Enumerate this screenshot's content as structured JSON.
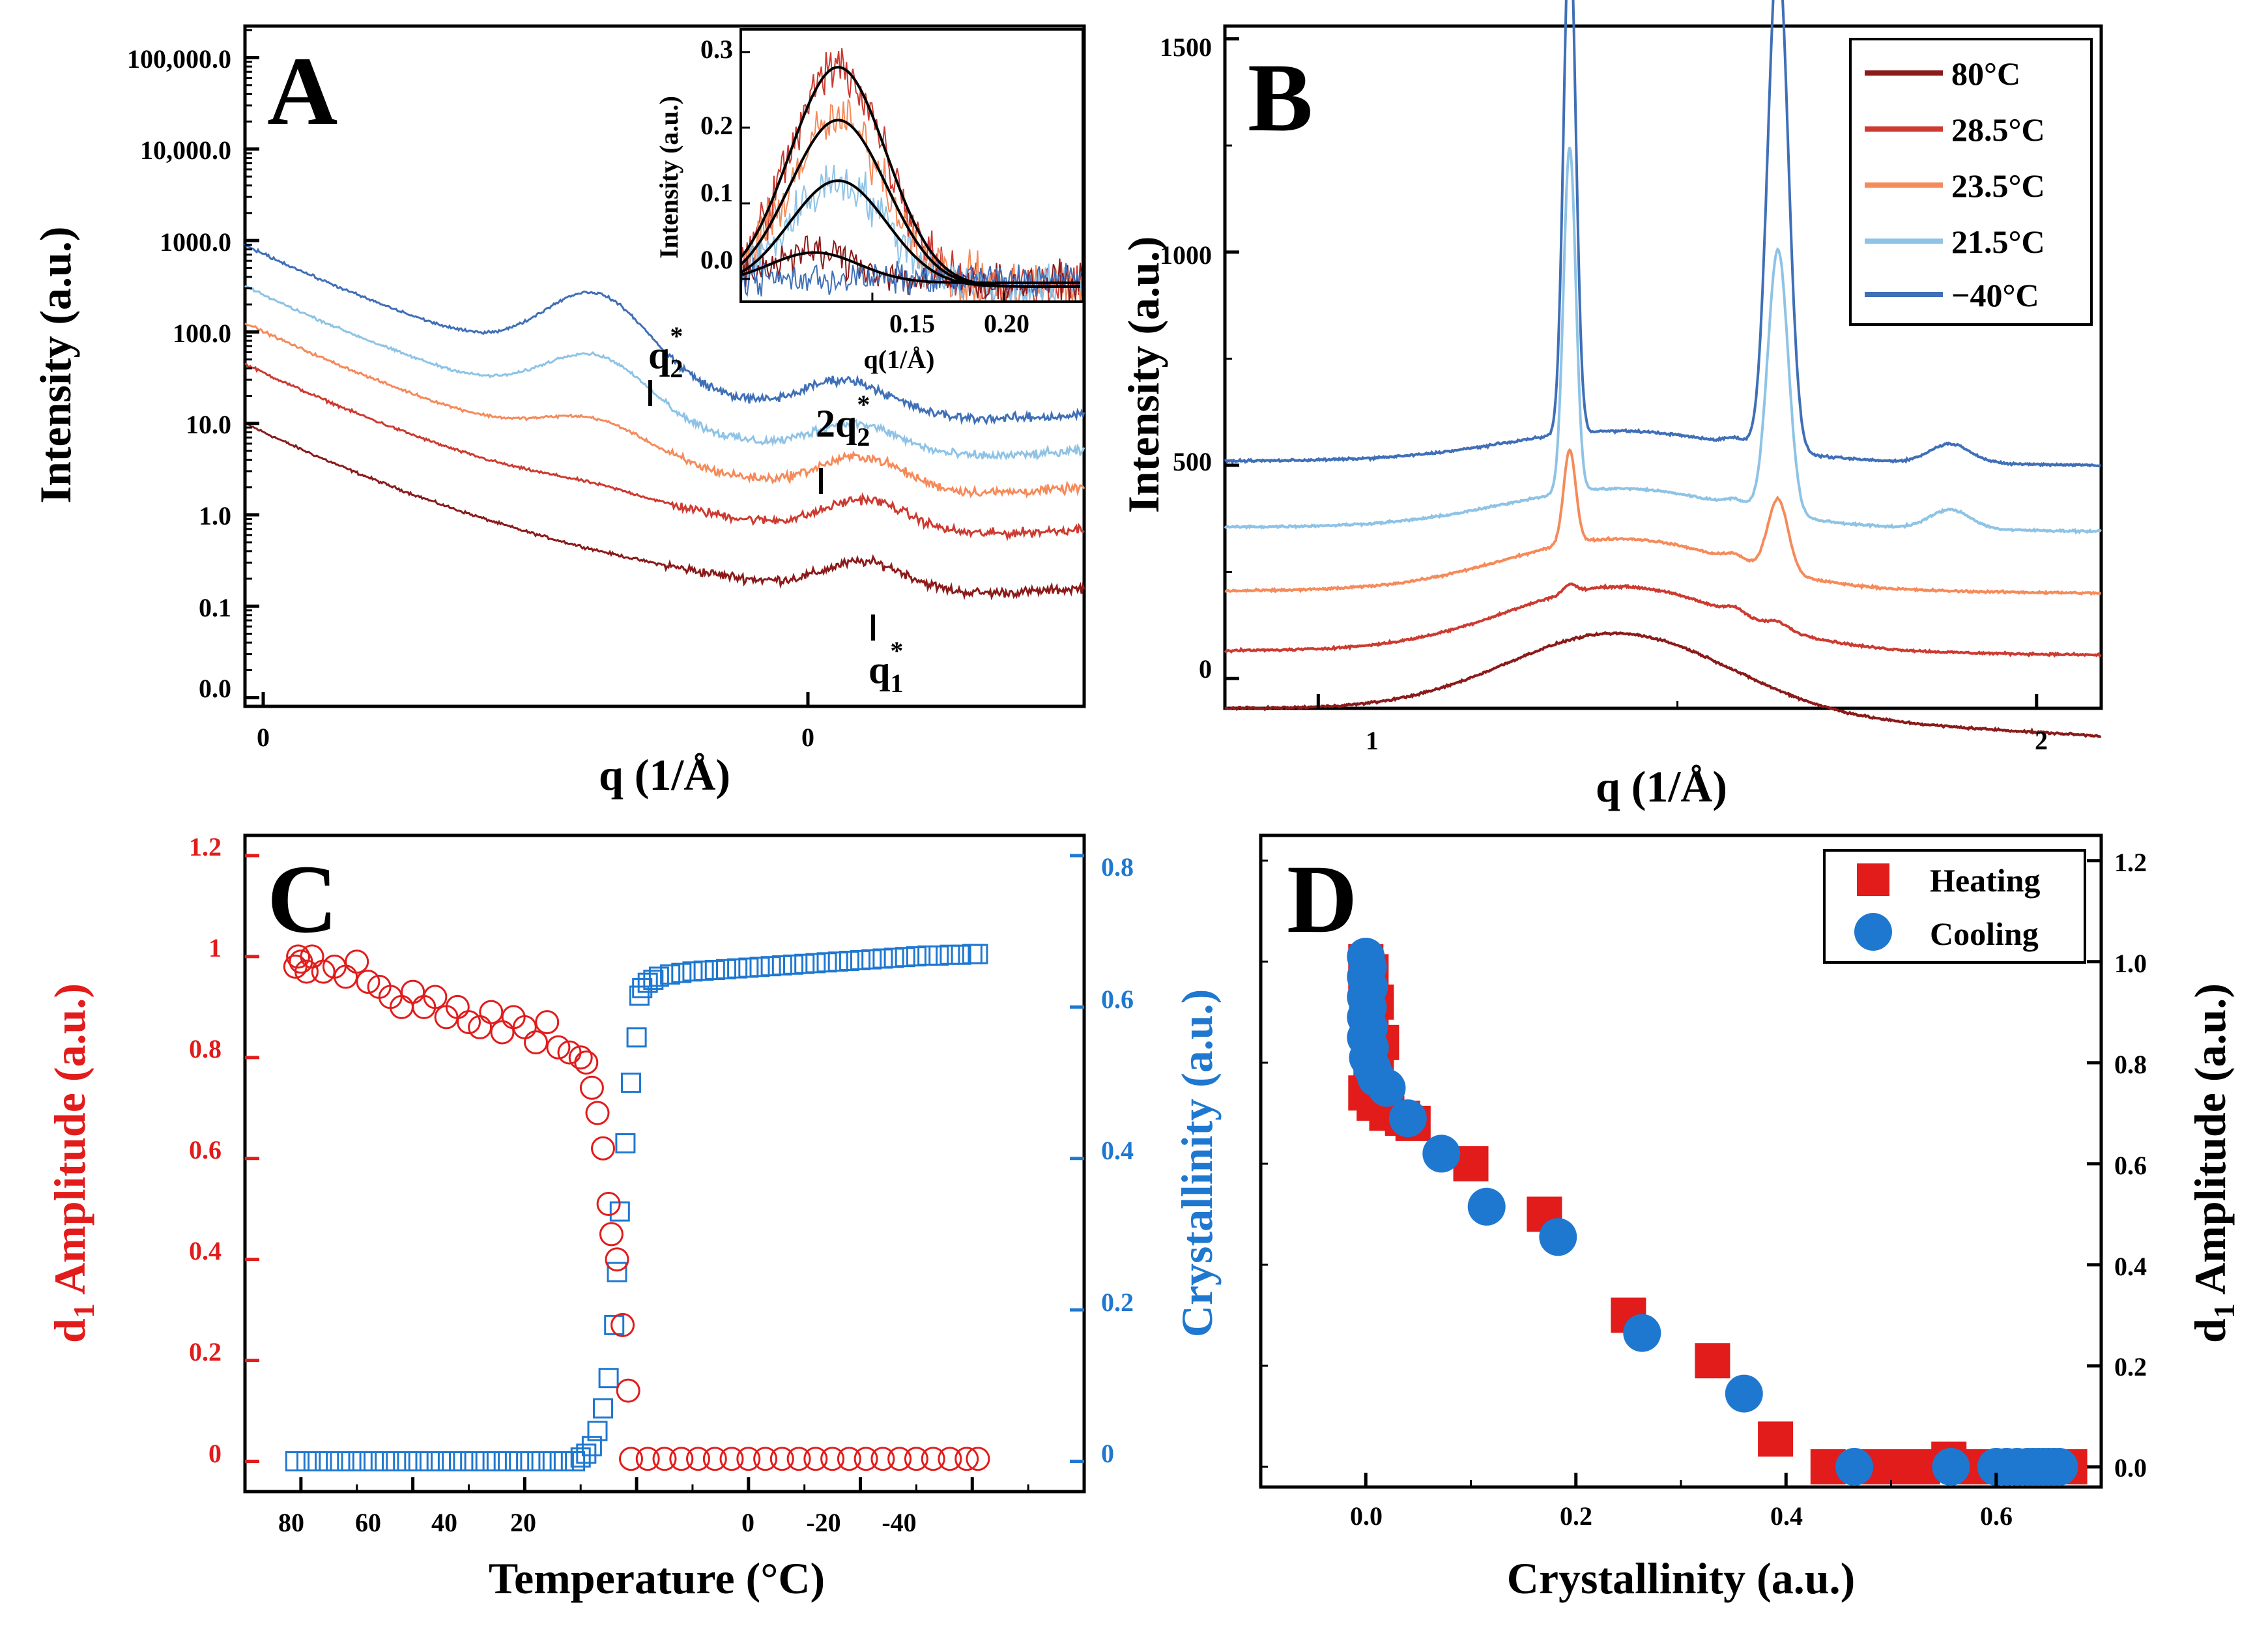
{
  "colors": {
    "c80": "#8b1a1a",
    "c285": "#cc3a30",
    "c235": "#f58a5a",
    "c215": "#8ec3e6",
    "cm40": "#3f6fb7",
    "red": "#e21b1b",
    "blue": "#1f78d0"
  },
  "chart_data": [
    {
      "panel": "A",
      "type": "line",
      "xlabel": "q (1/Å)",
      "ylabel": "Intensity (a.u.)",
      "x_tick_labels": [
        "0",
        "0"
      ],
      "y_tick_labels": [
        "100,000.0",
        "10,000.0",
        "1000.0",
        "100.0",
        "10.0",
        "1.0",
        "0.1",
        "0.0"
      ],
      "annotations": {
        "q2": "q",
        "q2_sub": "2",
        "q2_sup": "*",
        "two_q2": "2q",
        "two_q2_sub": "2",
        "two_q2_sup": "*",
        "q1": "q",
        "q1_sub": "1",
        "q1_sup": "*"
      },
      "series_names": [
        "80°C",
        "28.5°C",
        "23.5°C",
        "21.5°C",
        "−40°C"
      ],
      "inset": {
        "type": "line",
        "xlabel": "q(1/Å)",
        "ylabel": "Intensity (a.u.)",
        "xlim": [
          0.1,
          0.23
        ],
        "ylim": [
          -0.03,
          0.33
        ],
        "x_ticks": [
          0.15,
          0.2
        ],
        "x_tick_labels": [
          "0.15",
          "0.20"
        ],
        "y_ticks": [
          0.0,
          0.1,
          0.2,
          0.3
        ],
        "y_tick_labels": [
          "0.0",
          "0.1",
          "0.2",
          "0.3"
        ],
        "gaussian_fits": [
          {
            "name": "28.5°C",
            "center": 0.137,
            "amplitude": 0.29,
            "width": 0.026,
            "base": -0.01
          },
          {
            "name": "23.5°C",
            "center": 0.137,
            "amplitude": 0.22,
            "width": 0.026,
            "base": -0.01
          },
          {
            "name": "21.5°C",
            "center": 0.137,
            "amplitude": 0.14,
            "width": 0.026,
            "base": -0.01
          },
          {
            "name": "80°C",
            "center": 0.128,
            "amplitude": 0.04,
            "width": 0.024,
            "base": -0.005
          }
        ]
      }
    },
    {
      "panel": "B",
      "type": "line",
      "xlabel": "q (1/Å)",
      "ylabel": "Intensity (a.u.)",
      "xlim": [
        0.87,
        2.09
      ],
      "ylim": [
        -70,
        1530
      ],
      "x_ticks": [
        1,
        2
      ],
      "x_tick_labels": [
        "1",
        "2"
      ],
      "y_ticks": [
        0,
        500,
        1000,
        1500
      ],
      "y_tick_labels": [
        "0",
        "500",
        "1000",
        "1500"
      ],
      "legend": [
        "80°C",
        "28.5°C",
        "23.5°C",
        "21.5°C",
        "−40°C"
      ],
      "peaks_q": [
        1.35,
        1.64
      ],
      "series": [
        {
          "name": "80°C",
          "baseline_left": -70,
          "baseline_right": -75,
          "hump_height": 190,
          "peak1": 0,
          "peak2": 0
        },
        {
          "name": "28.5°C",
          "baseline_left": 65,
          "baseline_right": 75,
          "hump_height": 150,
          "peak1": 20,
          "peak2": 15
        },
        {
          "name": "23.5°C",
          "baseline_left": 205,
          "baseline_right": 220,
          "hump_height": 120,
          "peak1": 220,
          "peak2": 170
        },
        {
          "name": "21.5°C",
          "baseline_left": 355,
          "baseline_right": 365,
          "hump_height": 90,
          "peak1": 810,
          "peak2": 620
        },
        {
          "name": "−40°C",
          "baseline_left": 510,
          "baseline_right": 520,
          "hump_height": 70,
          "peak1": 1200,
          "peak2": 1180
        }
      ]
    },
    {
      "panel": "C",
      "type": "scatter",
      "xlabel": "Temperature (°C)",
      "ylabel_left": "d",
      "ylabel_left_sub": "1",
      "ylabel_left_rest": " Amplitude (a.u.)",
      "ylabel_right": "Crystallinity (a.u.)",
      "xlim": [
        90,
        -60
      ],
      "ylim_left": [
        -0.06,
        1.24
      ],
      "ylim_right": [
        -0.04,
        0.8267
      ],
      "x_ticks": [
        80,
        60,
        40,
        20,
        0,
        -20,
        -40
      ],
      "x_tick_labels": [
        "80",
        "60",
        "40",
        "20",
        "0",
        "-20",
        "-40"
      ],
      "y_left_ticks": [
        0,
        0.2,
        0.4,
        0.6,
        0.8,
        1,
        1.2
      ],
      "y_left_tick_labels": [
        "0",
        "0.2",
        "0.4",
        "0.6",
        "0.8",
        "1",
        "1.2"
      ],
      "y_right_ticks": [
        0,
        0.2,
        0.4,
        0.6,
        0.8
      ],
      "y_right_tick_labels": [
        "0",
        "0.2",
        "0.4",
        "0.6",
        "0.8"
      ],
      "d1_points": [
        [
          81,
          0.98
        ],
        [
          80.5,
          1.0
        ],
        [
          80,
          0.99
        ],
        [
          79,
          0.97
        ],
        [
          78,
          1.0
        ],
        [
          76,
          0.97
        ],
        [
          74,
          0.98
        ],
        [
          72,
          0.96
        ],
        [
          70,
          0.99
        ],
        [
          68,
          0.95
        ],
        [
          66,
          0.94
        ],
        [
          64,
          0.92
        ],
        [
          62,
          0.9
        ],
        [
          60,
          0.93
        ],
        [
          58,
          0.9
        ],
        [
          56,
          0.92
        ],
        [
          54,
          0.88
        ],
        [
          52,
          0.9
        ],
        [
          50,
          0.87
        ],
        [
          48,
          0.86
        ],
        [
          46,
          0.89
        ],
        [
          44,
          0.85
        ],
        [
          42,
          0.88
        ],
        [
          40,
          0.86
        ],
        [
          38,
          0.83
        ],
        [
          36,
          0.87
        ],
        [
          34,
          0.82
        ],
        [
          32,
          0.81
        ],
        [
          30,
          0.8
        ],
        [
          29,
          0.79
        ],
        [
          28,
          0.74
        ],
        [
          27,
          0.69
        ],
        [
          26,
          0.62
        ],
        [
          25,
          0.51
        ],
        [
          24.5,
          0.45
        ],
        [
          23.5,
          0.4
        ],
        [
          22.5,
          0.27
        ],
        [
          21.5,
          0.14
        ],
        [
          21,
          0.005
        ],
        [
          18,
          0.005
        ],
        [
          15,
          0.005
        ],
        [
          12,
          0.005
        ],
        [
          9,
          0.005
        ],
        [
          6,
          0.005
        ],
        [
          3,
          0.005
        ],
        [
          0,
          0.005
        ],
        [
          -3,
          0.005
        ],
        [
          -6,
          0.005
        ],
        [
          -9,
          0.005
        ],
        [
          -12,
          0.005
        ],
        [
          -15,
          0.005
        ],
        [
          -18,
          0.005
        ],
        [
          -21,
          0.005
        ],
        [
          -24,
          0.005
        ],
        [
          -27,
          0.005
        ],
        [
          -30,
          0.005
        ],
        [
          -33,
          0.005
        ],
        [
          -36,
          0.005
        ],
        [
          -39,
          0.005
        ],
        [
          -41,
          0.005
        ]
      ],
      "crystallinity_points": [
        [
          81,
          0.0
        ],
        [
          79,
          0.0
        ],
        [
          77,
          0.0
        ],
        [
          75,
          0.0
        ],
        [
          73,
          0.0
        ],
        [
          71,
          0.0
        ],
        [
          69,
          0.0
        ],
        [
          67,
          0.0
        ],
        [
          65,
          0.0
        ],
        [
          63,
          0.0
        ],
        [
          61,
          0.0
        ],
        [
          59,
          0.0
        ],
        [
          57,
          0.0
        ],
        [
          55,
          0.0
        ],
        [
          53,
          0.0
        ],
        [
          51,
          0.0
        ],
        [
          49,
          0.0
        ],
        [
          47,
          0.0
        ],
        [
          45,
          0.0
        ],
        [
          43,
          0.0
        ],
        [
          41,
          0.0
        ],
        [
          39,
          0.0
        ],
        [
          37,
          0.0
        ],
        [
          35,
          0.0
        ],
        [
          33,
          0.0
        ],
        [
          31,
          0.0
        ],
        [
          30,
          0.005
        ],
        [
          29,
          0.01
        ],
        [
          28,
          0.02
        ],
        [
          27,
          0.04
        ],
        [
          26,
          0.07
        ],
        [
          25,
          0.11
        ],
        [
          24,
          0.18
        ],
        [
          23.5,
          0.25
        ],
        [
          23,
          0.33
        ],
        [
          22,
          0.42
        ],
        [
          21,
          0.5
        ],
        [
          20,
          0.56
        ],
        [
          19.5,
          0.615
        ],
        [
          19,
          0.625
        ],
        [
          18,
          0.632
        ],
        [
          17,
          0.636
        ],
        [
          16,
          0.64
        ],
        [
          14,
          0.643
        ],
        [
          12,
          0.645
        ],
        [
          10,
          0.647
        ],
        [
          8,
          0.648
        ],
        [
          6,
          0.649
        ],
        [
          4,
          0.65
        ],
        [
          2,
          0.651
        ],
        [
          0,
          0.652
        ],
        [
          -2,
          0.653
        ],
        [
          -4,
          0.654
        ],
        [
          -6,
          0.655
        ],
        [
          -8,
          0.656
        ],
        [
          -10,
          0.657
        ],
        [
          -12,
          0.658
        ],
        [
          -14,
          0.659
        ],
        [
          -16,
          0.66
        ],
        [
          -18,
          0.661
        ],
        [
          -20,
          0.662
        ],
        [
          -22,
          0.663
        ],
        [
          -24,
          0.664
        ],
        [
          -26,
          0.665
        ],
        [
          -28,
          0.666
        ],
        [
          -30,
          0.667
        ],
        [
          -32,
          0.668
        ],
        [
          -34,
          0.668
        ],
        [
          -36,
          0.669
        ],
        [
          -38,
          0.669
        ],
        [
          -40,
          0.67
        ],
        [
          -41,
          0.67
        ]
      ]
    },
    {
      "panel": "D",
      "type": "scatter",
      "xlabel": "Crystallinity (a.u.)",
      "ylabel": "d",
      "ylabel_sub": "1",
      "ylabel_rest": " Amplitude (a.u.)",
      "xlim": [
        -0.1,
        0.7
      ],
      "ylim": [
        -0.04,
        1.25
      ],
      "x_ticks": [
        0.0,
        0.2,
        0.4,
        0.6
      ],
      "x_tick_labels": [
        "0.0",
        "0.2",
        "0.4",
        "0.6"
      ],
      "y_ticks": [
        0.0,
        0.2,
        0.4,
        0.6,
        0.8,
        1.0,
        1.2
      ],
      "y_tick_labels": [
        "0.0",
        "0.2",
        "0.4",
        "0.6",
        "0.8",
        "1.0",
        "1.2"
      ],
      "legend": [
        "Heating",
        "Cooling"
      ],
      "heating": [
        [
          0.0,
          1.0
        ],
        [
          0.005,
          0.98
        ],
        [
          0.0,
          0.95
        ],
        [
          0.01,
          0.92
        ],
        [
          0.005,
          0.88
        ],
        [
          0.015,
          0.84
        ],
        [
          0.01,
          0.8
        ],
        [
          0.005,
          0.77
        ],
        [
          0.0,
          0.74
        ],
        [
          0.008,
          0.72
        ],
        [
          0.02,
          0.7
        ],
        [
          0.035,
          0.69
        ],
        [
          0.045,
          0.68
        ],
        [
          0.1,
          0.6
        ],
        [
          0.17,
          0.5
        ],
        [
          0.25,
          0.3
        ],
        [
          0.33,
          0.21
        ],
        [
          0.39,
          0.055
        ],
        [
          0.44,
          0.0
        ],
        [
          0.48,
          0.0
        ],
        [
          0.51,
          0.0
        ],
        [
          0.53,
          0.0
        ],
        [
          0.555,
          0.015
        ],
        [
          0.58,
          0.0
        ],
        [
          0.6,
          0.0
        ],
        [
          0.63,
          0.0
        ],
        [
          0.65,
          0.0
        ],
        [
          0.67,
          0.0
        ]
      ],
      "cooling": [
        [
          0.0,
          1.01
        ],
        [
          0.002,
          0.99
        ],
        [
          0.0,
          0.97
        ],
        [
          0.003,
          0.95
        ],
        [
          0.0,
          0.93
        ],
        [
          0.002,
          0.91
        ],
        [
          0.0,
          0.89
        ],
        [
          0.003,
          0.87
        ],
        [
          0.0,
          0.85
        ],
        [
          0.004,
          0.83
        ],
        [
          0.002,
          0.81
        ],
        [
          0.006,
          0.79
        ],
        [
          0.01,
          0.77
        ],
        [
          0.02,
          0.75
        ],
        [
          0.04,
          0.69
        ],
        [
          0.072,
          0.62
        ],
        [
          0.115,
          0.515
        ],
        [
          0.183,
          0.455
        ],
        [
          0.263,
          0.265
        ],
        [
          0.36,
          0.145
        ],
        [
          0.465,
          0.0
        ],
        [
          0.557,
          0.0
        ],
        [
          0.6,
          0.0
        ],
        [
          0.61,
          0.0
        ],
        [
          0.62,
          0.0
        ],
        [
          0.63,
          0.0
        ],
        [
          0.635,
          0.0
        ],
        [
          0.64,
          0.0
        ],
        [
          0.645,
          0.0
        ],
        [
          0.65,
          0.0
        ],
        [
          0.655,
          0.0
        ],
        [
          0.66,
          0.0
        ]
      ]
    }
  ],
  "panels": {
    "a": "A",
    "b": "B",
    "c": "C",
    "d": "D"
  }
}
